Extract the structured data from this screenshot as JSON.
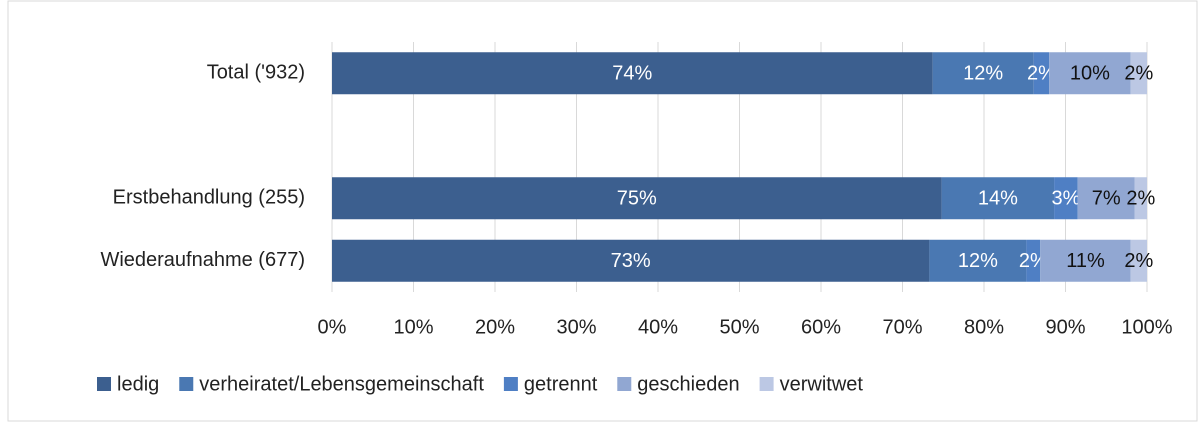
{
  "chart_data": {
    "type": "bar",
    "orientation": "horizontal",
    "stacked": true,
    "categories": [
      "Total ('932)",
      null,
      "Erstbehandlung (255)",
      "Wiederaufnahme (677)"
    ],
    "series": [
      {
        "name": "ledig",
        "color": "#3c5f8f",
        "label_color": "#ffffff",
        "values": [
          73.7,
          null,
          74.8,
          73.3
        ],
        "value_labels": [
          "74%",
          null,
          "75%",
          "73%"
        ]
      },
      {
        "name": "verheiratet/Lebensgemeinschaft",
        "color": "#4a78b2",
        "label_color": "#ffffff",
        "values": [
          12.4,
          null,
          13.8,
          11.9
        ],
        "value_labels": [
          "12%",
          null,
          "14%",
          "12%"
        ]
      },
      {
        "name": "getrennt",
        "color": "#4f7fc4",
        "label_color": "#ffffff",
        "values": [
          1.9,
          null,
          2.9,
          1.7
        ],
        "value_labels": [
          "2%",
          null,
          "3%",
          "2%"
        ]
      },
      {
        "name": "geschieden",
        "color": "#91a7d2",
        "label_color": "#111111",
        "values": [
          10.0,
          null,
          7.0,
          11.1
        ],
        "value_labels": [
          "10%",
          null,
          "7%",
          "11%"
        ]
      },
      {
        "name": "verwitwet",
        "color": "#bcc8e4",
        "label_color": "#111111",
        "values": [
          2.0,
          null,
          1.5,
          2.0
        ],
        "value_labels": [
          "2%",
          null,
          "2%",
          "2%"
        ]
      }
    ],
    "xlim": [
      0,
      100
    ],
    "xticks": [
      {
        "value": 0,
        "label": "0%"
      },
      {
        "value": 10,
        "label": "10%"
      },
      {
        "value": 20,
        "label": "20%"
      },
      {
        "value": 30,
        "label": "30%"
      },
      {
        "value": 40,
        "label": "40%"
      },
      {
        "value": 50,
        "label": "50%"
      },
      {
        "value": 60,
        "label": "60%"
      },
      {
        "value": 70,
        "label": "70%"
      },
      {
        "value": 80,
        "label": "80%"
      },
      {
        "value": 90,
        "label": "90%"
      },
      {
        "value": 100,
        "label": "100%"
      }
    ],
    "grid": true,
    "legend": "bottom"
  }
}
